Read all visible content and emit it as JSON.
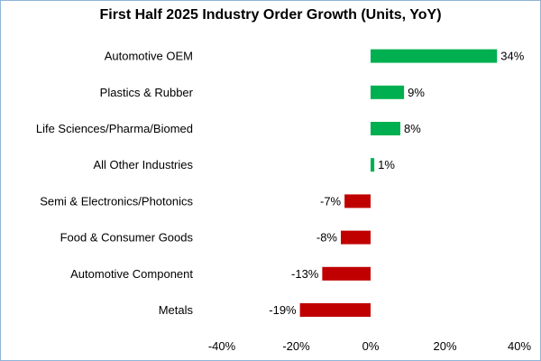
{
  "chart_data": {
    "type": "bar",
    "orientation": "horizontal",
    "title": "First Half 2025 Industry Order Growth (Units, YoY)",
    "categories": [
      "Automotive OEM",
      "Plastics & Rubber",
      "Life Sciences/Pharma/Biomed",
      "All Other Industries",
      "Semi & Electronics/Photonics",
      "Food & Consumer Goods",
      "Automotive Component",
      "Metals"
    ],
    "values": [
      34,
      9,
      8,
      1,
      -7,
      -8,
      -13,
      -19
    ],
    "value_labels": [
      "34%",
      "9%",
      "8%",
      "1%",
      "-7%",
      "-8%",
      "-13%",
      "-19%"
    ],
    "xlim": [
      -40,
      40
    ],
    "xticks": [
      -40,
      -20,
      0,
      20,
      40
    ],
    "xtick_labels": [
      "-40%",
      "-20%",
      "0%",
      "20%",
      "40%"
    ],
    "grid": false,
    "colors": {
      "positive": "#00b050",
      "negative": "#c00000"
    }
  }
}
